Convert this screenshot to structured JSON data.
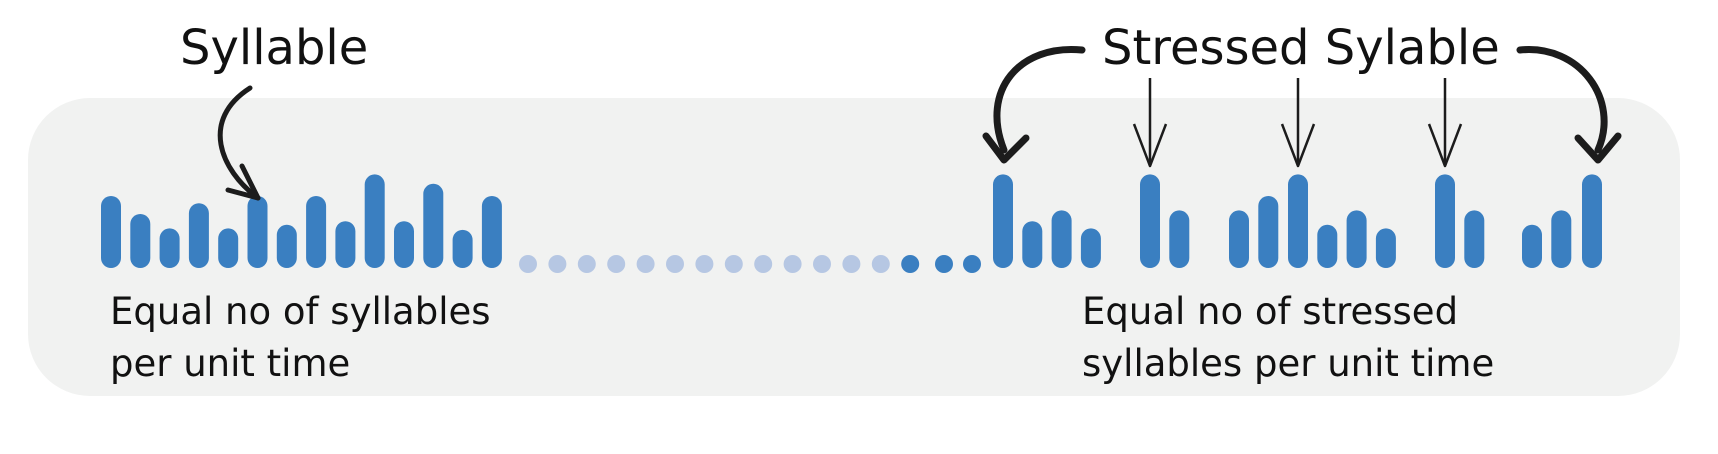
{
  "labels": {
    "syllable": "Syllable",
    "stressed_syllable": "Stressed Sylable",
    "left_caption": [
      "Equal no of syllables",
      "per unit time"
    ],
    "right_caption": [
      "Equal no of stressed",
      "syllables per unit time"
    ]
  },
  "colors": {
    "bar": "#3a7fc1",
    "dot_faded": "#b6c7e3",
    "panel": "#f1f2f1",
    "arrow": "#1c1c1c"
  },
  "left_rhythm": {
    "description_order": "syllables, each bar one syllable",
    "relative_heights": [
      1.0,
      0.75,
      0.55,
      0.9,
      0.55,
      1.0,
      0.6,
      1.0,
      0.65,
      1.3,
      0.65,
      1.17,
      0.53,
      1.0
    ]
  },
  "right_rhythm": {
    "groups": [
      {
        "stressed": true,
        "relative_heights": [
          1.3,
          0.65,
          0.8,
          0.55
        ]
      },
      {
        "stressed": true,
        "relative_heights": [
          1.3,
          0.8
        ]
      },
      {
        "stressed": false,
        "relative_heights": [
          0.8,
          1.0
        ]
      },
      {
        "stressed": true,
        "relative_heights": [
          1.3,
          0.6,
          0.8,
          0.55
        ]
      },
      {
        "stressed": true,
        "relative_heights": [
          1.3,
          0.8
        ]
      },
      {
        "stressed": false,
        "relative_heights": [
          0.6,
          0.8
        ]
      },
      {
        "stressed": true,
        "relative_heights": [
          1.3
        ]
      }
    ]
  }
}
